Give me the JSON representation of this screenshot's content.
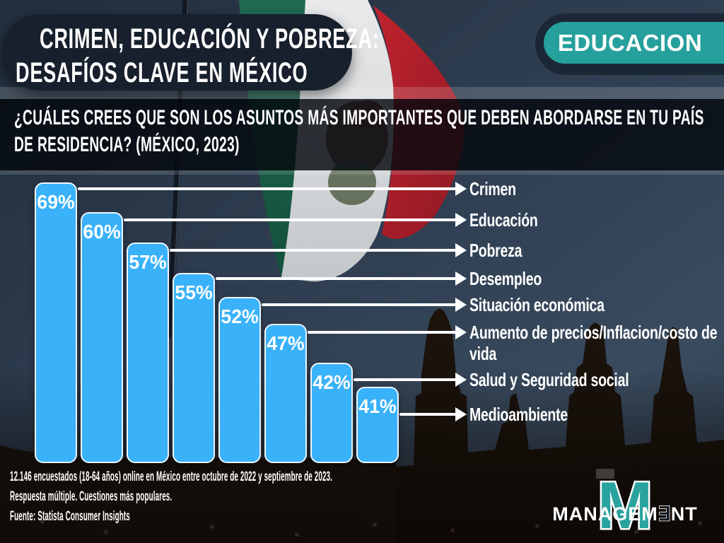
{
  "header": {
    "title_line1": "CRIMEN, EDUCACIÓN Y POBREZA:",
    "title_line2": "DESAFÍOS CLAVE EN MÉXICO",
    "badge_label": "EDUCACION"
  },
  "question": {
    "line1": "¿CUÁLES CREES QUE SON LOS ASUNTOS MÁS IMPORTANTES QUE DEBEN ABORDARSE EN TU PAÍS",
    "line2": "DE RESIDENCIA? (MÉXICO, 2023)"
  },
  "chart_data": {
    "type": "bar",
    "title": "Crimen, educación y pobreza: desafíos clave en México",
    "question": "¿Cuáles crees que son los asuntos más importantes que deben abordarse en tu país de residencia? (México, 2023)",
    "orientation": "vertical-descending",
    "unit": "%",
    "categories": [
      "Crimen",
      "Educación",
      "Pobreza",
      "Desempleo",
      "Situación económica",
      "Aumento de precios/Inflacion/costo de vida",
      "Salud y Seguridad social",
      "Medioambiente"
    ],
    "values": [
      69,
      60,
      57,
      55,
      52,
      47,
      42,
      41
    ],
    "bar_color": "#3ab2fa",
    "value_label_color": "#ffffff",
    "ylim": [
      0,
      100
    ],
    "grid": false,
    "legend": false
  },
  "footer": {
    "line1": "12.146 encuestados (18-64 años) online en México entre octubre de 2022 y septiembre de 2023.",
    "line2": "Respuesta múltiple. Cuestiones más populares.",
    "line3": "Fuente: Statista Consumer Insights"
  },
  "logo": {
    "big_letter": "M",
    "word_start": "MANAGEM",
    "word_mid": "∃",
    "word_end": "NT"
  },
  "colors": {
    "accent_teal": "#26a09c",
    "bar_blue": "#3ab2fa",
    "panel_navy": "#17202c",
    "flag_green": "#1f6b52",
    "flag_red": "#c0222e"
  }
}
